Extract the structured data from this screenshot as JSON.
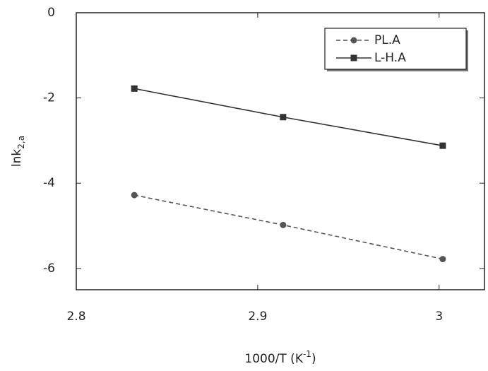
{
  "chart_data": {
    "type": "line",
    "xlabel": "1000/T (K",
    "xlabel_sup": "-1",
    "xlabel_end": ")",
    "ylabel": "lnk",
    "ylabel_sub": "2,a",
    "x": [
      2.832,
      2.914,
      3.002
    ],
    "series": [
      {
        "name": "PL.A",
        "color": "#555555",
        "dash": true,
        "marker": "circle",
        "values": [
          -4.28,
          -4.98,
          -5.78
        ]
      },
      {
        "name": "L-H.A",
        "color": "#333333",
        "dash": false,
        "marker": "square",
        "values": [
          -1.78,
          -2.45,
          -3.12
        ]
      }
    ],
    "xlim": [
      2.8,
      3.025
    ],
    "xticks": [
      2.8,
      2.9,
      3
    ],
    "ylim": [
      -6.5,
      0
    ],
    "yticks": [
      0,
      -2,
      -4,
      -6
    ],
    "legend": "top-right"
  }
}
